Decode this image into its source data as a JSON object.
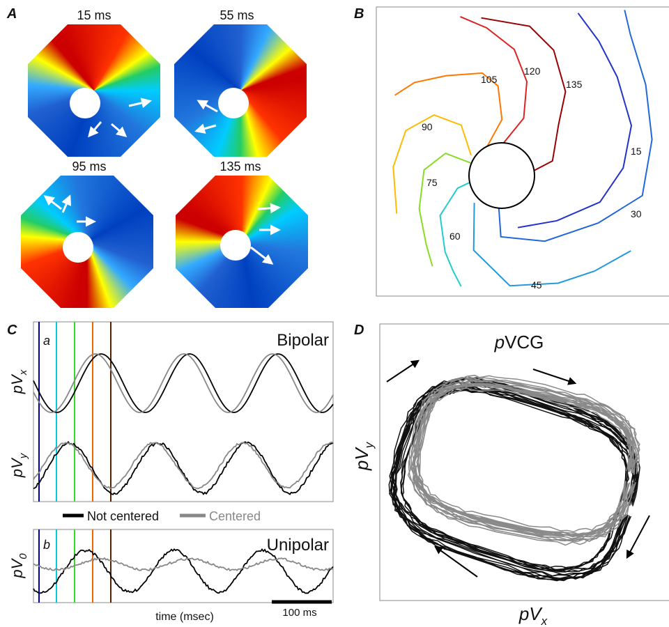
{
  "panel_a": {
    "label": "A",
    "frames": [
      "15 ms",
      "55 ms",
      "95 ms",
      "135 ms"
    ]
  },
  "panel_b": {
    "label": "B",
    "isochrones": [
      "15",
      "30",
      "45",
      "60",
      "75",
      "90",
      "105",
      "120",
      "135"
    ]
  },
  "panel_c": {
    "label": "C",
    "sub_a": "a",
    "bipolar": "Bipolar",
    "y_x": {
      "base": "pV",
      "sub": "x"
    },
    "y_y": {
      "base": "pV",
      "sub": "y"
    },
    "legend": [
      "Not centered",
      "Centered"
    ],
    "sub_b": "b",
    "unipolar": "Unipolar",
    "y_0": {
      "base": "pV",
      "sub": "0"
    },
    "x_label": "time (msec)",
    "scale_bar": "100 ms"
  },
  "panel_d": {
    "label": "D",
    "title": {
      "italic": "p",
      "rest": "VCG"
    },
    "y_label": {
      "base": "pV",
      "sub": "y"
    },
    "x_label": {
      "base": "pV",
      "sub": "x"
    }
  }
}
